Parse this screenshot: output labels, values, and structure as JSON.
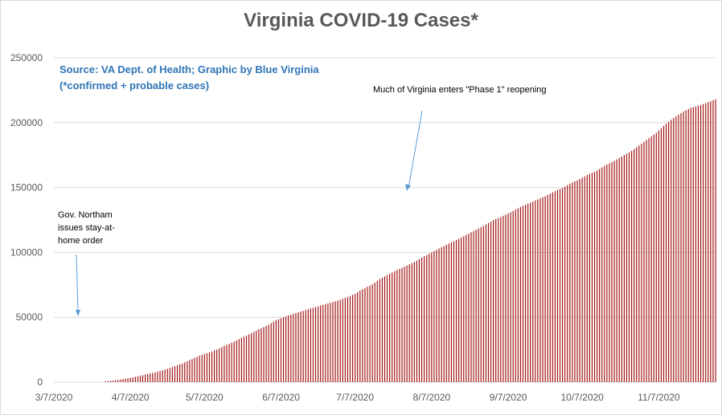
{
  "title": "Virginia COVID-19 Cases*",
  "source_line1": "Source: VA Dept. of Health; Graphic by Blue Virginia",
  "source_line2": "(*confirmed + probable cases)",
  "annotations": {
    "phase1": "Much of Virginia enters \"Phase 1\" reopening",
    "northam": "Gov. Northam issues stay-at-home order"
  },
  "colors": {
    "bar": "#a31515",
    "grid": "#d9d9d9",
    "axis_text": "#595959",
    "title": "#595959",
    "source_text": "#2e75b6",
    "arrow": "#5b9bd5"
  },
  "chart_data": {
    "type": "bar",
    "title": "Virginia COVID-19 Cases*",
    "xlabel": "",
    "ylabel": "",
    "ylim": [
      0,
      250000
    ],
    "y_ticks": [
      0,
      50000,
      100000,
      150000,
      200000,
      250000
    ],
    "x_tick_labels": [
      "3/7/2020",
      "4/7/2020",
      "5/7/2020",
      "6/7/2020",
      "7/7/2020",
      "8/7/2020",
      "9/7/2020",
      "10/7/2020",
      "11/7/2020"
    ],
    "x_start": "3/7/2020",
    "x_end": "11/30/2020",
    "grid": true,
    "legend": "none",
    "series": [
      {
        "x": [
          "3/28/2020",
          "3/31/2020",
          "4/3/2020",
          "4/7/2020",
          "4/10/2020",
          "4/14/2020",
          "4/17/2020",
          "4/21/2020",
          "4/24/2020",
          "4/28/2020",
          "5/1/2020",
          "5/5/2020",
          "5/8/2020",
          "5/12/2020",
          "5/15/2020",
          "5/19/2020",
          "5/22/2020",
          "5/26/2020",
          "5/29/2020",
          "6/2/2020",
          "6/5/2020",
          "6/9/2020",
          "6/12/2020",
          "6/16/2020",
          "6/19/2020",
          "6/23/2020",
          "6/26/2020",
          "6/30/2020",
          "7/3/2020",
          "7/7/2020",
          "7/10/2020",
          "7/14/2020",
          "7/17/2020",
          "7/21/2020",
          "7/24/2020",
          "7/28/2020",
          "7/31/2020",
          "8/4/2020",
          "8/7/2020",
          "8/11/2020",
          "8/14/2020",
          "8/18/2020",
          "8/21/2020",
          "8/25/2020",
          "8/28/2020",
          "9/1/2020",
          "9/4/2020",
          "9/8/2020",
          "9/11/2020",
          "9/15/2020",
          "9/18/2020",
          "9/22/2020",
          "9/25/2020",
          "9/29/2020",
          "10/2/2020",
          "10/6/2020",
          "10/9/2020",
          "10/13/2020",
          "10/16/2020",
          "10/20/2020",
          "10/23/2020",
          "10/27/2020",
          "10/30/2020",
          "11/3/2020",
          "11/6/2020",
          "11/10/2020",
          "11/13/2020",
          "11/17/2020",
          "11/20/2020",
          "11/24/2020",
          "11/27/2020",
          "11/30/2020"
        ],
        "values": [
          700,
          1200,
          2000,
          3300,
          4500,
          6200,
          7500,
          9600,
          11600,
          14300,
          17000,
          20300,
          22300,
          25100,
          27800,
          31100,
          34100,
          37700,
          40700,
          44200,
          47800,
          50700,
          52600,
          54900,
          56800,
          59000,
          60600,
          62800,
          64900,
          68000,
          71600,
          75400,
          79400,
          83600,
          86400,
          89900,
          92600,
          97000,
          99900,
          104000,
          106800,
          110500,
          113500,
          117500,
          120400,
          124900,
          127300,
          131000,
          134000,
          137500,
          140000,
          143300,
          146300,
          149700,
          152900,
          156500,
          159600,
          163100,
          166700,
          170600,
          173900,
          178300,
          182400,
          188000,
          192200,
          199300,
          203600,
          208600,
          211500,
          213700,
          215800,
          218000
        ]
      }
    ]
  }
}
